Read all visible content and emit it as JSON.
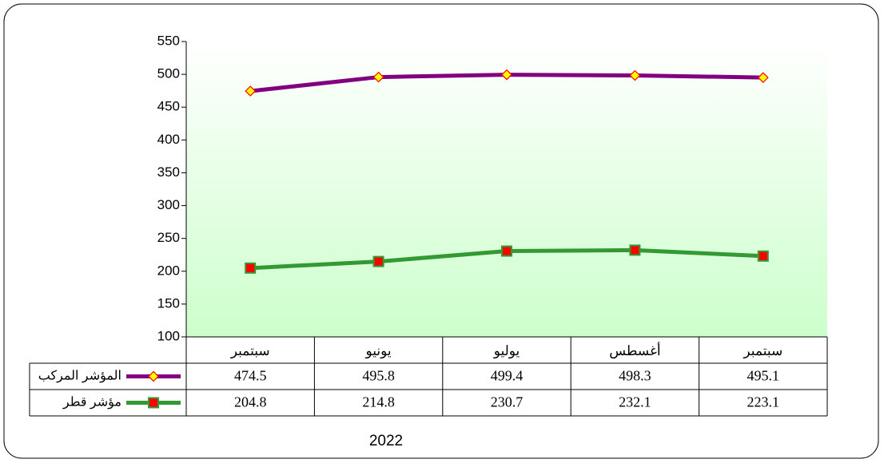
{
  "chart_data": {
    "type": "line",
    "categories": [
      "سبتمبر",
      "يونيو",
      "يوليو",
      "أغسطس",
      "سبتمبر"
    ],
    "series": [
      {
        "name": "المؤشر المركب",
        "color": "#800080",
        "marker": "diamond",
        "values": [
          474.5,
          495.8,
          499.4,
          498.3,
          495.1
        ]
      },
      {
        "name": "مؤشر قطر",
        "color": "#339933",
        "marker": "square",
        "values": [
          204.8,
          214.8,
          230.7,
          232.1,
          223.1
        ]
      }
    ],
    "ylim": [
      100,
      550
    ],
    "yticks": [
      100,
      150,
      200,
      250,
      300,
      350,
      400,
      450,
      500,
      550
    ],
    "x_label": "2022",
    "data_table": true
  }
}
